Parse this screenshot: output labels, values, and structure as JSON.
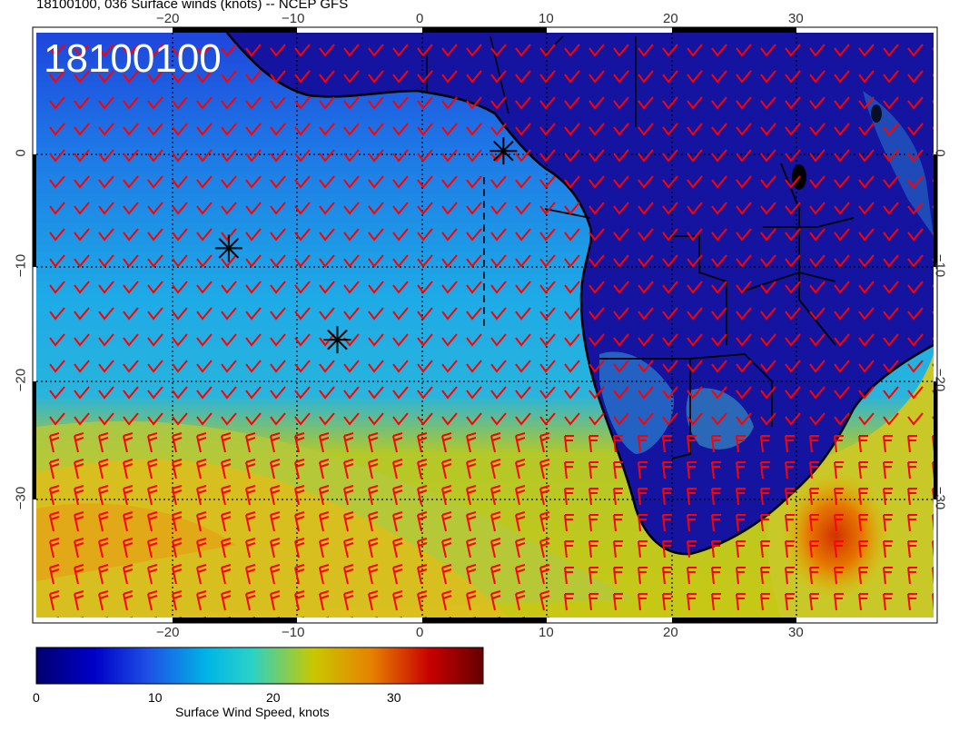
{
  "header": {
    "title": "18100100, 036 Surface winds (knots) -- NCEP GFS"
  },
  "overlay_label": "18100100",
  "axes": {
    "top_lon_ticks": [
      "−20",
      "−10",
      "0",
      "10",
      "20",
      "30"
    ],
    "bottom_lon_ticks": [
      "−20",
      "−10",
      "0",
      "10",
      "20",
      "30"
    ],
    "left_lat_ticks": [
      "0",
      "−10",
      "−20",
      "−30"
    ],
    "right_lat_ticks": [
      "0",
      "−10",
      "−20",
      "−30"
    ]
  },
  "markers": [
    {
      "name": "storm-marker",
      "lon": 6.5,
      "lat": 0.3
    },
    {
      "name": "storm-marker",
      "lon": -15.5,
      "lat": -8.2
    },
    {
      "name": "storm-marker",
      "lon": -6.8,
      "lat": -16.2
    }
  ],
  "colorbar": {
    "title": "Surface Wind Speed, knots",
    "ticks": [
      "0",
      "10",
      "20",
      "30"
    ],
    "min": 0,
    "max": 37,
    "colors": [
      "#00006e",
      "#0000c8",
      "#1e50e6",
      "#00b4e6",
      "#28d2c8",
      "#c8c800",
      "#e68200",
      "#c80000",
      "#640000"
    ]
  },
  "colors": {
    "wind_barbs": "#ff0000",
    "coastline": "#000000"
  }
}
